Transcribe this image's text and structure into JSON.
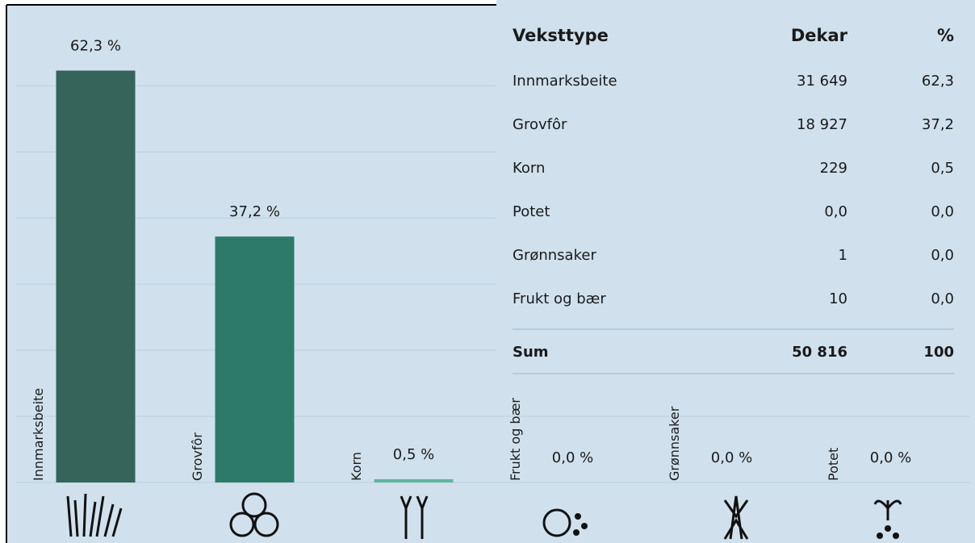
{
  "chart_data": {
    "type": "bar",
    "categories": [
      "Innmarksbeite",
      "Grovfôr",
      "Korn",
      "Frukt og bær",
      "Grønnsaker",
      "Potet"
    ],
    "values": [
      62.3,
      37.2,
      0.5,
      0.0,
      0.0,
      0.0
    ],
    "value_labels": [
      "62,3 %",
      "37,2 %",
      "0,5 %",
      "0,0 %",
      "0,0 %",
      "0,0 %"
    ],
    "colors": [
      "#34645a",
      "#2e7a6a",
      "#5fb5a0",
      "#5fb5a0",
      "#5fb5a0",
      "#5fb5a0"
    ],
    "ylim": [
      0,
      72
    ],
    "yticks": [
      0,
      10,
      20,
      30,
      40,
      50,
      60
    ],
    "grid": true
  },
  "table": {
    "header": [
      "Veksttype",
      "Dekar",
      "%"
    ],
    "rows": [
      [
        "Innmarksbeite",
        "31 649",
        "62,3"
      ],
      [
        "Grovfôr",
        "18 927",
        "37,2"
      ],
      [
        "Korn",
        "229",
        "0,5"
      ],
      [
        "Potet",
        "0,0",
        "0,0"
      ],
      [
        "Grønnsaker",
        "1",
        "0,0"
      ],
      [
        "Frukt og bær",
        "10",
        "0,0"
      ]
    ],
    "sum": [
      "Sum",
      "50 816",
      "100"
    ]
  }
}
